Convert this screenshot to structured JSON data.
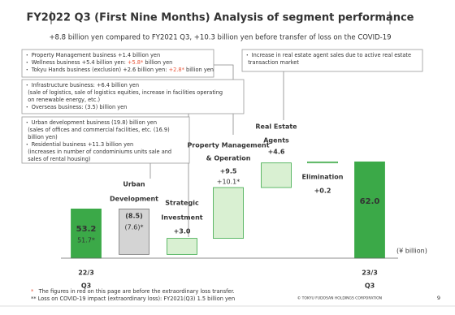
{
  "header": {
    "title": "FY2022 Q3 (First Nine Months) Analysis of segment performance",
    "subtitle": "+8.8 billion yen compared to FY2021 Q3, +10.3 billion yen before transfer of loss on the COVID-19"
  },
  "chart_data": {
    "type": "waterfall",
    "categories": [
      [
        "22/3",
        "Q3"
      ],
      [
        "Urban",
        "Development"
      ],
      [
        "Strategic",
        "Investment"
      ],
      [
        "Property Management",
        "& Operation"
      ],
      [
        "Real Estate",
        "Agents"
      ],
      [
        "Elimination"
      ],
      [
        "23/3",
        "Q3"
      ]
    ],
    "values": [
      53.2,
      -8.5,
      3.0,
      9.5,
      4.6,
      0.2,
      62.0
    ],
    "value_labels": [
      "53.2",
      "(8.5)",
      "+3.0",
      "+9.5",
      "+4.6",
      "+0.2",
      "62.0"
    ],
    "before_transfer_labels": [
      "51.7*",
      "(7.6)*",
      null,
      "+10.1*",
      null,
      null,
      null
    ],
    "ylim": [
      44,
      66
    ],
    "unit": "(¥ billion)",
    "colors": {
      "total": "#3ba948",
      "increase": "#d9f0d2",
      "decrease": "#d4d4d4",
      "before_transfer": "#e8553a"
    }
  },
  "notes": [
    {
      "lines": [
        [
          "・ Property Management business +1.4 billion yen"
        ],
        [
          "・ Wellness business +5.4 billion yen: ",
          {
            "text": "+5.8*",
            "color": "#e8553a"
          },
          " billion yen"
        ],
        [
          "・ Tokyu Hands business (exclusion) +2.6 billion yen: ",
          {
            "text": "+2.8*",
            "color": "#e8553a"
          },
          " billion yen"
        ]
      ]
    },
    {
      "lines": [
        [
          "・ Infrastructure business: +6.4 billion yen"
        ],
        [
          "  (sale of logistics, sale of logistics equities, increase in facilities operating"
        ],
        [
          "  on renewable energy, etc.)"
        ],
        [
          "・ Overseas business: (3.5) billion yen"
        ]
      ]
    },
    {
      "lines": [
        [
          "・ Urban development business (19.8) billion yen"
        ],
        [
          "  (sales of offices and commercial facilities, etc. (16.9)"
        ],
        [
          "  billion yen)"
        ],
        [
          "・ Residential business +11.3 billion yen"
        ],
        [
          "  (increases in number of condominiums units sale and"
        ],
        [
          "  sales of rental housing)"
        ]
      ]
    },
    {
      "lines": [
        [
          "・ Increase in real estate agent sales due to active real estate"
        ],
        [
          "  transaction market"
        ]
      ]
    }
  ],
  "footnotes": [
    [
      {
        "text": "*",
        "color": "#e8553a"
      },
      "   The figures in red on this page are before the extraordinary loss transfer."
    ],
    [
      "** Loss on COVID-19 impact (extraordinary loss): FY2021(Q3) 1.5 billion yen"
    ]
  ],
  "footer": {
    "copyright": "© TOKYU FUDOSAN HOLDINGS CORPORATION",
    "page": "9"
  }
}
